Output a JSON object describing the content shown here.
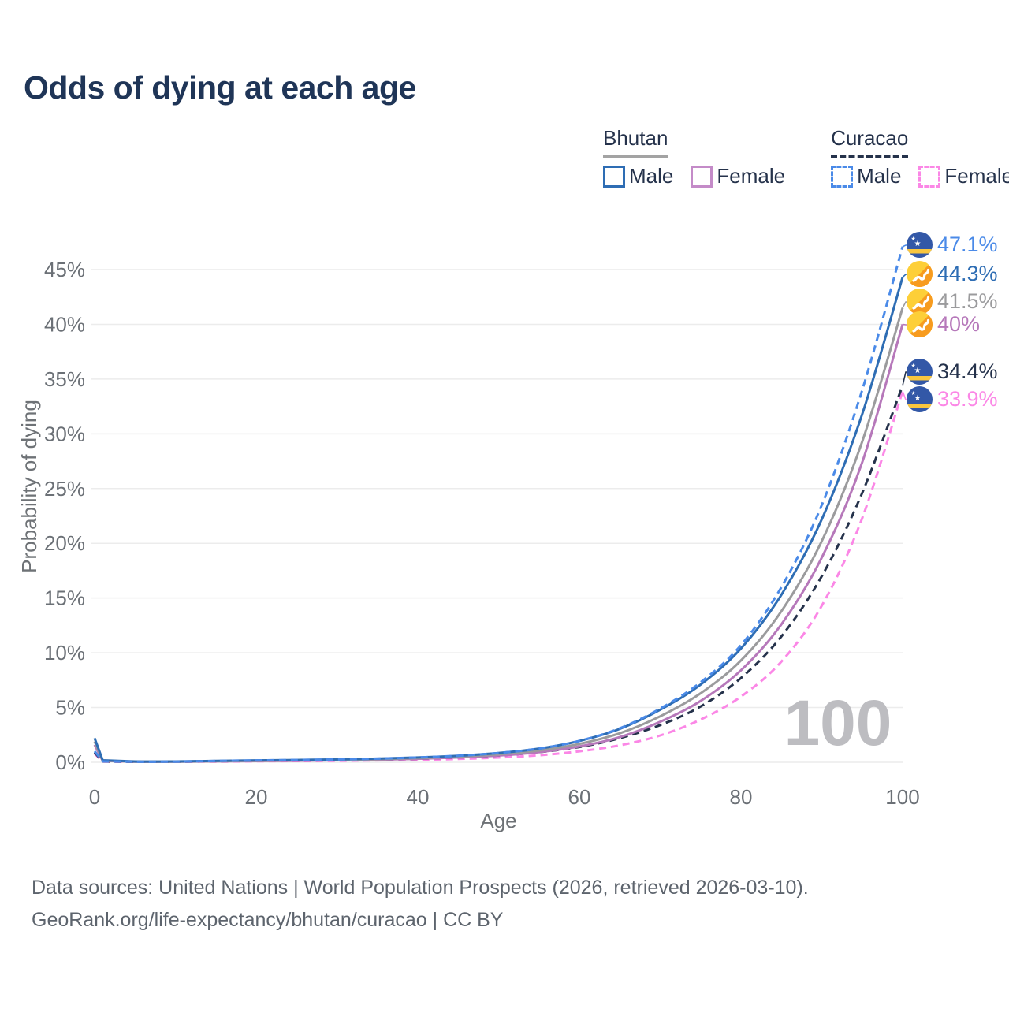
{
  "title": "Odds of dying at each age",
  "legend": {
    "bhutan": {
      "label": "Bhutan",
      "male_label": "Male",
      "female_label": "Female",
      "male_color": "#2e6db4",
      "female_color": "#c48bc8",
      "line_style": "solid"
    },
    "curacao": {
      "label": "Curacao",
      "male_label": "Male",
      "female_label": "Female",
      "male_color": "#4a8ae8",
      "female_color": "#fb87e6",
      "line_style": "dashed"
    }
  },
  "chart_data": {
    "type": "line",
    "title": "Odds of dying at each age",
    "xlabel": "Age",
    "ylabel": "Probability of dying",
    "xlim": [
      0,
      100
    ],
    "ylim": [
      0,
      47.5
    ],
    "x_ticks": [
      0,
      20,
      40,
      60,
      80,
      100
    ],
    "y_ticks": [
      0,
      5,
      10,
      15,
      20,
      25,
      30,
      35,
      40,
      45
    ],
    "y_tick_suffix": "%",
    "grid": "horizontal",
    "watermark": "100",
    "x": [
      0,
      1,
      5,
      10,
      15,
      20,
      25,
      30,
      35,
      40,
      45,
      50,
      55,
      60,
      65,
      70,
      75,
      80,
      85,
      90,
      95,
      100
    ],
    "series": [
      {
        "name": "Curacao Male",
        "country": "Curacao",
        "sex": "male",
        "style": "dashed",
        "color": "#4a8ae8",
        "flag": "curacao",
        "end_label": "47.1%",
        "values": [
          1.0,
          0.08,
          0.05,
          0.06,
          0.12,
          0.17,
          0.21,
          0.26,
          0.33,
          0.44,
          0.6,
          0.85,
          1.25,
          1.95,
          3.1,
          4.9,
          7.3,
          10.7,
          16.0,
          23.5,
          34.0,
          47.1
        ]
      },
      {
        "name": "Bhutan Male",
        "country": "Bhutan",
        "sex": "male",
        "style": "solid",
        "color": "#2e6db4",
        "flag": "bhutan",
        "end_label": "44.3%",
        "values": [
          2.2,
          0.18,
          0.07,
          0.07,
          0.12,
          0.17,
          0.21,
          0.26,
          0.33,
          0.44,
          0.6,
          0.85,
          1.25,
          1.95,
          3.05,
          4.8,
          7.1,
          10.4,
          15.3,
          22.2,
          31.8,
          44.3
        ]
      },
      {
        "name": "Bhutan",
        "country": "Bhutan",
        "sex": "both",
        "style": "solid",
        "color": "#9b9b9d",
        "flag": "bhutan",
        "end_label": "41.5%",
        "values": [
          1.9,
          0.15,
          0.06,
          0.06,
          0.1,
          0.14,
          0.18,
          0.22,
          0.28,
          0.38,
          0.52,
          0.73,
          1.08,
          1.68,
          2.65,
          4.2,
          6.3,
          9.3,
          13.8,
          20.2,
          29.3,
          41.5
        ]
      },
      {
        "name": "Bhutan Female",
        "country": "Bhutan",
        "sex": "female",
        "style": "solid",
        "color": "#b678ba",
        "flag": "bhutan",
        "end_label": "40%",
        "values": [
          1.6,
          0.13,
          0.05,
          0.05,
          0.08,
          0.11,
          0.14,
          0.18,
          0.24,
          0.32,
          0.44,
          0.62,
          0.93,
          1.45,
          2.3,
          3.7,
          5.6,
          8.4,
          12.6,
          18.7,
          27.4,
          40.0
        ]
      },
      {
        "name": "Curacao",
        "country": "Curacao",
        "sex": "both",
        "style": "dashed",
        "color": "#25324b",
        "flag": "curacao",
        "end_label": "34.4%",
        "values": [
          0.9,
          0.07,
          0.04,
          0.05,
          0.09,
          0.13,
          0.16,
          0.19,
          0.24,
          0.32,
          0.44,
          0.62,
          0.92,
          1.4,
          2.2,
          3.4,
          5.1,
          7.7,
          11.5,
          17.0,
          24.6,
          34.4
        ]
      },
      {
        "name": "Curacao Female",
        "country": "Curacao",
        "sex": "female",
        "style": "dashed",
        "color": "#fb87e6",
        "flag": "curacao",
        "end_label": "33.9%",
        "values": [
          0.8,
          0.06,
          0.035,
          0.04,
          0.06,
          0.09,
          0.11,
          0.13,
          0.17,
          0.22,
          0.3,
          0.43,
          0.64,
          1.0,
          1.55,
          2.45,
          3.9,
          6.0,
          9.2,
          14.3,
          22.3,
          33.9
        ]
      }
    ]
  },
  "footer": {
    "line1": "Data sources: United Nations | World Population Prospects (2026, retrieved 2026-03-10).",
    "line2": "GeoRank.org/life-expectancy/bhutan/curacao | CC BY"
  }
}
